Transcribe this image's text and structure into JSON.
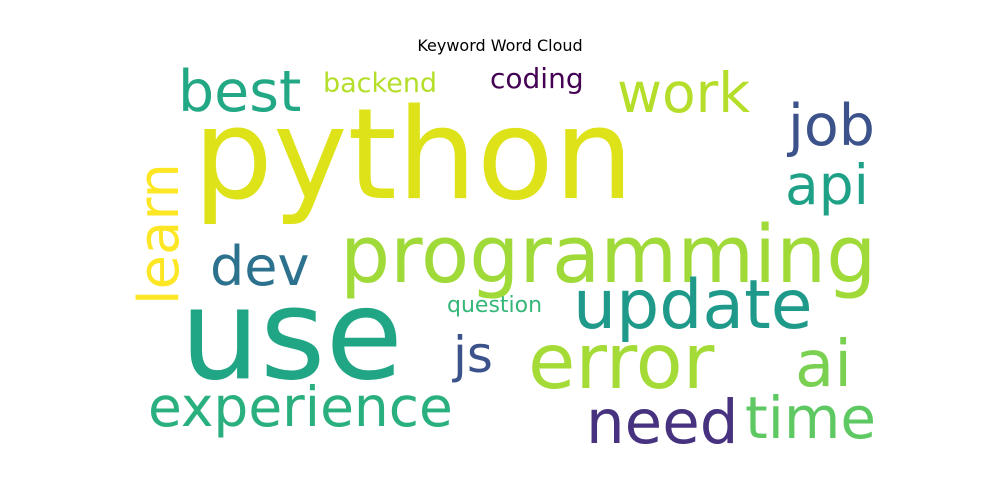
{
  "chart_data": {
    "type": "wordcloud",
    "title": "Keyword Word Cloud",
    "words": [
      {
        "text": "python",
        "weight": 100,
        "color": "#dde318",
        "orientation": "horizontal"
      },
      {
        "text": "use",
        "weight": 90,
        "color": "#21a685",
        "orientation": "horizontal"
      },
      {
        "text": "programming",
        "weight": 55,
        "color": "#a0da39",
        "orientation": "horizontal"
      },
      {
        "text": "error",
        "weight": 50,
        "color": "#a5db36",
        "orientation": "horizontal"
      },
      {
        "text": "update",
        "weight": 47,
        "color": "#1f9a8a",
        "orientation": "horizontal"
      },
      {
        "text": "experience",
        "weight": 40,
        "color": "#2ab07f",
        "orientation": "horizontal"
      },
      {
        "text": "time",
        "weight": 38,
        "color": "#5ec962",
        "orientation": "horizontal"
      },
      {
        "text": "need",
        "weight": 40,
        "color": "#46327e",
        "orientation": "horizontal"
      },
      {
        "text": "ai",
        "weight": 40,
        "color": "#7ad151",
        "orientation": "horizontal"
      },
      {
        "text": "learn",
        "weight": 38,
        "color": "#fde725",
        "orientation": "vertical"
      },
      {
        "text": "work",
        "weight": 38,
        "color": "#b5de2b",
        "orientation": "horizontal"
      },
      {
        "text": "best",
        "weight": 35,
        "color": "#22a884",
        "orientation": "horizontal"
      },
      {
        "text": "job",
        "weight": 35,
        "color": "#3b528b",
        "orientation": "horizontal"
      },
      {
        "text": "api",
        "weight": 35,
        "color": "#1fa187",
        "orientation": "horizontal"
      },
      {
        "text": "dev",
        "weight": 35,
        "color": "#2c728e",
        "orientation": "horizontal"
      },
      {
        "text": "js",
        "weight": 35,
        "color": "#3b528b",
        "orientation": "horizontal"
      },
      {
        "text": "coding",
        "weight": 20,
        "color": "#440154",
        "orientation": "horizontal"
      },
      {
        "text": "backend",
        "weight": 18,
        "color": "#b5de2b",
        "orientation": "horizontal"
      },
      {
        "text": "question",
        "weight": 15,
        "color": "#35b779",
        "orientation": "horizontal"
      }
    ]
  }
}
